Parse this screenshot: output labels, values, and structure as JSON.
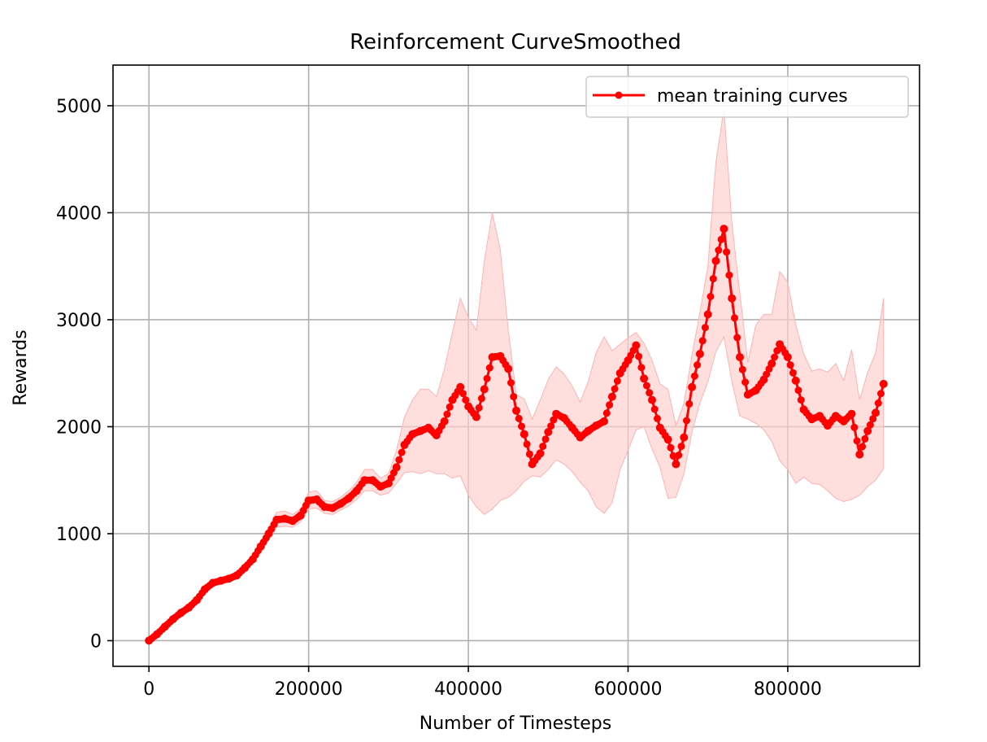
{
  "chart_data": {
    "type": "line",
    "title": "Reinforcement CurveSmoothed",
    "xlabel": "Number of Timesteps",
    "ylabel": "Rewards",
    "xlim": [
      -45000,
      965000
    ],
    "ylim": [
      -240,
      5380
    ],
    "xticks": [
      0,
      200000,
      400000,
      600000,
      800000
    ],
    "xtick_labels": [
      "0",
      "200000",
      "400000",
      "600000",
      "800000"
    ],
    "yticks": [
      0,
      1000,
      2000,
      3000,
      4000,
      5000
    ],
    "ytick_labels": [
      "0",
      "1000",
      "2000",
      "3000",
      "4000",
      "5000"
    ],
    "grid": true,
    "legend_position": "top-right",
    "colors": {
      "line": "#ff0000",
      "band": "#ffcccc"
    },
    "series": [
      {
        "name": "mean training curves",
        "marker": "dot",
        "x": [
          0,
          10000,
          20000,
          30000,
          40000,
          50000,
          60000,
          70000,
          80000,
          90000,
          100000,
          110000,
          120000,
          130000,
          140000,
          150000,
          160000,
          170000,
          180000,
          190000,
          200000,
          210000,
          220000,
          230000,
          240000,
          250000,
          260000,
          270000,
          280000,
          290000,
          300000,
          310000,
          320000,
          330000,
          340000,
          350000,
          360000,
          370000,
          380000,
          390000,
          400000,
          410000,
          420000,
          430000,
          440000,
          450000,
          460000,
          470000,
          480000,
          490000,
          500000,
          510000,
          520000,
          530000,
          540000,
          550000,
          560000,
          570000,
          580000,
          590000,
          600000,
          610000,
          620000,
          630000,
          640000,
          650000,
          660000,
          670000,
          680000,
          690000,
          700000,
          710000,
          720000,
          730000,
          740000,
          750000,
          760000,
          770000,
          780000,
          790000,
          800000,
          810000,
          820000,
          830000,
          840000,
          850000,
          860000,
          870000,
          880000,
          890000,
          900000,
          910000,
          920000
        ],
        "y": [
          0,
          60,
          130,
          200,
          260,
          310,
          380,
          480,
          540,
          560,
          580,
          610,
          680,
          760,
          880,
          1000,
          1130,
          1140,
          1120,
          1170,
          1310,
          1320,
          1250,
          1240,
          1280,
          1330,
          1400,
          1500,
          1500,
          1440,
          1470,
          1620,
          1830,
          1930,
          1960,
          1990,
          1920,
          2050,
          2250,
          2370,
          2190,
          2090,
          2350,
          2650,
          2660,
          2540,
          2150,
          1930,
          1650,
          1750,
          1950,
          2120,
          2080,
          1990,
          1900,
          1960,
          2010,
          2050,
          2280,
          2500,
          2620,
          2760,
          2450,
          2250,
          1990,
          1880,
          1650,
          1900,
          2370,
          2680,
          3050,
          3550,
          3850,
          3200,
          2650,
          2300,
          2340,
          2440,
          2590,
          2770,
          2650,
          2430,
          2160,
          2070,
          2100,
          2010,
          2100,
          2050,
          2120,
          1740,
          1960,
          2130,
          2400
        ],
        "lower": [
          0,
          50,
          120,
          185,
          245,
          295,
          360,
          460,
          515,
          535,
          555,
          585,
          650,
          720,
          830,
          940,
          1060,
          1070,
          1060,
          1110,
          1230,
          1240,
          1190,
          1180,
          1220,
          1260,
          1320,
          1400,
          1400,
          1360,
          1380,
          1470,
          1570,
          1580,
          1560,
          1590,
          1560,
          1560,
          1520,
          1540,
          1360,
          1250,
          1180,
          1230,
          1310,
          1340,
          1400,
          1490,
          1540,
          1530,
          1600,
          1690,
          1650,
          1580,
          1480,
          1400,
          1250,
          1190,
          1290,
          1600,
          1780,
          1970,
          2000,
          1790,
          1620,
          1330,
          1340,
          1560,
          1950,
          2220,
          2420,
          2700,
          2840,
          2420,
          2100,
          2070,
          2030,
          1970,
          1860,
          1680,
          1600,
          1470,
          1530,
          1470,
          1460,
          1400,
          1330,
          1300,
          1320,
          1360,
          1440,
          1500,
          1610
        ],
        "upper": [
          0,
          70,
          140,
          215,
          275,
          325,
          400,
          500,
          565,
          585,
          605,
          635,
          710,
          800,
          930,
          1060,
          1200,
          1210,
          1180,
          1230,
          1390,
          1400,
          1310,
          1300,
          1340,
          1400,
          1480,
          1600,
          1600,
          1520,
          1560,
          1780,
          2090,
          2250,
          2350,
          2350,
          2280,
          2540,
          2880,
          3200,
          3020,
          2900,
          3550,
          4000,
          3650,
          2900,
          2300,
          2260,
          2070,
          2250,
          2440,
          2560,
          2490,
          2380,
          2230,
          2420,
          2690,
          2840,
          2710,
          2770,
          2830,
          2880,
          2780,
          2620,
          2400,
          2350,
          2010,
          2220,
          2670,
          3070,
          3500,
          4470,
          4970,
          3900,
          3250,
          2600,
          2950,
          3050,
          3050,
          3450,
          3350,
          2950,
          2680,
          2520,
          2540,
          2510,
          2590,
          2430,
          2720,
          2250,
          2510,
          2690,
          3200
        ]
      }
    ]
  }
}
